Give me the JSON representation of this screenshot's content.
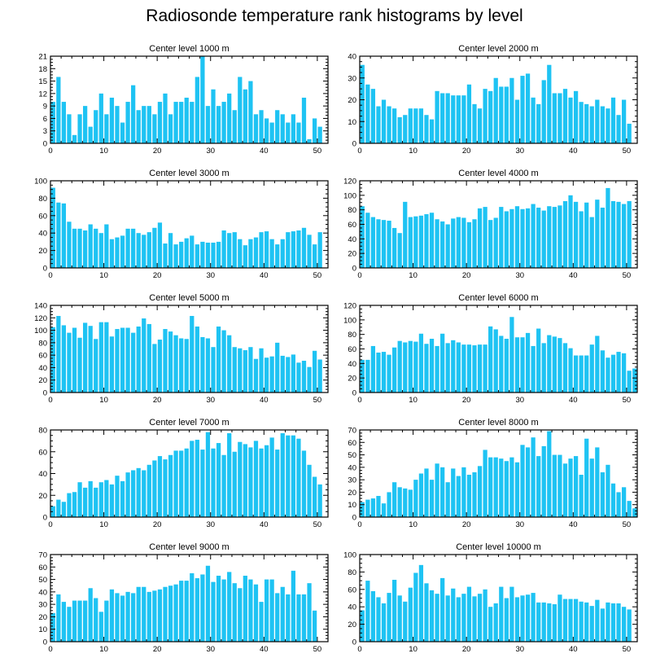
{
  "title": "Radiosonde temperature rank histograms by level",
  "colors": {
    "bar": "#1ec3f3",
    "axis": "#000000",
    "background": "#ffffff"
  },
  "chart_data": [
    {
      "type": "bar",
      "title": "Center level 1000 m",
      "xlim": [
        0,
        52
      ],
      "ylim": [
        0,
        21
      ],
      "xticks": [
        0,
        10,
        20,
        30,
        40,
        50
      ],
      "yticks": [
        0,
        3,
        6,
        9,
        12,
        15,
        18,
        21
      ],
      "values": [
        10,
        16,
        10,
        7,
        2,
        7,
        9,
        4,
        8,
        12,
        7,
        11,
        9,
        5,
        10,
        14,
        8,
        9,
        9,
        7,
        10,
        12,
        7,
        10,
        10,
        11,
        10,
        16,
        21,
        9,
        13,
        9,
        10,
        12,
        8,
        16,
        13,
        15,
        7,
        8,
        6,
        5,
        8,
        7,
        5,
        7,
        5,
        11,
        1,
        6,
        4
      ]
    },
    {
      "type": "bar",
      "title": "Center level 2000 m",
      "xlim": [
        0,
        52
      ],
      "ylim": [
        0,
        40
      ],
      "xticks": [
        0,
        10,
        20,
        30,
        40,
        50
      ],
      "yticks": [
        0,
        10,
        20,
        30,
        40
      ],
      "values": [
        36,
        27,
        25,
        17,
        20,
        17,
        16,
        12,
        13,
        16,
        16,
        16,
        13,
        11,
        24,
        23,
        23,
        22,
        22,
        22,
        27,
        18,
        16,
        25,
        24,
        30,
        26,
        26,
        30,
        20,
        31,
        32,
        21,
        18,
        29,
        36,
        23,
        23,
        25,
        21,
        24,
        19,
        18,
        17,
        20,
        17,
        16,
        21,
        13,
        20,
        9
      ]
    },
    {
      "type": "bar",
      "title": "Center level 3000 m",
      "xlim": [
        0,
        52
      ],
      "ylim": [
        0,
        100
      ],
      "xticks": [
        0,
        10,
        20,
        30,
        40,
        50
      ],
      "yticks": [
        0,
        20,
        40,
        60,
        80,
        100
      ],
      "values": [
        92,
        75,
        74,
        53,
        45,
        45,
        43,
        50,
        45,
        40,
        50,
        33,
        35,
        37,
        45,
        45,
        40,
        38,
        41,
        46,
        52,
        28,
        40,
        27,
        30,
        34,
        37,
        27,
        30,
        29,
        29,
        30,
        43,
        40,
        41,
        33,
        26,
        33,
        35,
        41,
        42,
        33,
        27,
        33,
        41,
        42,
        43,
        46,
        38,
        27,
        41
      ]
    },
    {
      "type": "bar",
      "title": "Center level 4000 m",
      "xlim": [
        0,
        52
      ],
      "ylim": [
        0,
        120
      ],
      "xticks": [
        0,
        10,
        20,
        30,
        40,
        50
      ],
      "yticks": [
        0,
        20,
        40,
        60,
        80,
        100,
        120
      ],
      "values": [
        85,
        76,
        70,
        67,
        66,
        65,
        55,
        48,
        91,
        70,
        71,
        72,
        74,
        76,
        67,
        64,
        60,
        68,
        70,
        69,
        63,
        67,
        82,
        84,
        66,
        69,
        84,
        78,
        81,
        85,
        81,
        82,
        88,
        83,
        79,
        85,
        84,
        86,
        92,
        100,
        91,
        78,
        90,
        70,
        94,
        83,
        110,
        92,
        91,
        88,
        92
      ]
    },
    {
      "type": "bar",
      "title": "Center level 5000 m",
      "xlim": [
        0,
        52
      ],
      "ylim": [
        0,
        140
      ],
      "xticks": [
        0,
        10,
        20,
        30,
        40,
        50
      ],
      "yticks": [
        0,
        20,
        40,
        60,
        80,
        100,
        120,
        140
      ],
      "values": [
        105,
        123,
        108,
        96,
        104,
        88,
        112,
        107,
        86,
        113,
        113,
        90,
        102,
        104,
        104,
        96,
        106,
        119,
        110,
        78,
        85,
        102,
        98,
        92,
        87,
        86,
        123,
        106,
        89,
        87,
        73,
        106,
        100,
        92,
        73,
        71,
        68,
        73,
        54,
        71,
        56,
        58,
        80,
        59,
        57,
        61,
        48,
        51,
        41,
        67,
        53
      ]
    },
    {
      "type": "bar",
      "title": "Center level 6000 m",
      "xlim": [
        0,
        52
      ],
      "ylim": [
        0,
        120
      ],
      "xticks": [
        0,
        10,
        20,
        30,
        40,
        50
      ],
      "yticks": [
        0,
        20,
        40,
        60,
        80,
        100,
        120
      ],
      "values": [
        45,
        45,
        64,
        55,
        56,
        52,
        62,
        71,
        69,
        71,
        70,
        81,
        67,
        74,
        64,
        81,
        68,
        72,
        69,
        66,
        66,
        65,
        66,
        66,
        91,
        87,
        78,
        74,
        104,
        76,
        76,
        82,
        64,
        88,
        68,
        79,
        77,
        75,
        68,
        61,
        51,
        51,
        51,
        66,
        78,
        58,
        48,
        52,
        56,
        54,
        30,
        33
      ]
    },
    {
      "type": "bar",
      "title": "Center level 7000 m",
      "xlim": [
        0,
        52
      ],
      "ylim": [
        0,
        80
      ],
      "xticks": [
        0,
        10,
        20,
        30,
        40,
        50
      ],
      "yticks": [
        0,
        20,
        40,
        60,
        80
      ],
      "values": [
        10,
        16,
        14,
        22,
        23,
        32,
        27,
        33,
        27,
        32,
        34,
        30,
        38,
        33,
        41,
        43,
        45,
        43,
        48,
        52,
        56,
        53,
        57,
        61,
        61,
        63,
        70,
        71,
        62,
        78,
        63,
        68,
        57,
        77,
        60,
        69,
        67,
        64,
        70,
        63,
        66,
        73,
        62,
        77,
        75,
        75,
        72,
        61,
        48,
        37,
        30
      ]
    },
    {
      "type": "bar",
      "title": "Center level 8000 m",
      "xlim": [
        0,
        52
      ],
      "ylim": [
        0,
        70
      ],
      "xticks": [
        0,
        10,
        20,
        30,
        40,
        50
      ],
      "yticks": [
        0,
        10,
        20,
        30,
        40,
        50,
        60,
        70
      ],
      "values": [
        12,
        14,
        15,
        17,
        11,
        20,
        28,
        24,
        23,
        22,
        30,
        35,
        39,
        30,
        43,
        40,
        28,
        39,
        33,
        40,
        34,
        36,
        41,
        54,
        48,
        48,
        47,
        45,
        48,
        44,
        58,
        56,
        64,
        49,
        57,
        69,
        50,
        50,
        43,
        47,
        49,
        34,
        63,
        47,
        56,
        36,
        42,
        27,
        20,
        24,
        13,
        7
      ]
    },
    {
      "type": "bar",
      "title": "Center level 9000 m",
      "xlim": [
        0,
        52
      ],
      "ylim": [
        0,
        70
      ],
      "xticks": [
        0,
        10,
        20,
        30,
        40,
        50
      ],
      "yticks": [
        0,
        10,
        20,
        30,
        40,
        50,
        60,
        70
      ],
      "values": [
        23,
        38,
        32,
        28,
        33,
        33,
        33,
        43,
        35,
        24,
        33,
        42,
        39,
        37,
        40,
        39,
        44,
        44,
        40,
        41,
        42,
        44,
        45,
        46,
        49,
        49,
        55,
        51,
        54,
        61,
        48,
        53,
        50,
        56,
        47,
        43,
        53,
        50,
        46,
        32,
        50,
        50,
        39,
        44,
        38,
        57,
        38,
        38,
        47,
        25
      ]
    },
    {
      "type": "bar",
      "title": "Center level 10000 m",
      "xlim": [
        0,
        52
      ],
      "ylim": [
        0,
        100
      ],
      "xticks": [
        0,
        10,
        20,
        30,
        40,
        50
      ],
      "yticks": [
        0,
        20,
        40,
        60,
        80,
        100
      ],
      "values": [
        36,
        70,
        58,
        51,
        44,
        56,
        71,
        53,
        46,
        62,
        79,
        88,
        67,
        59,
        55,
        73,
        53,
        61,
        51,
        55,
        63,
        52,
        55,
        60,
        40,
        44,
        63,
        50,
        63,
        51,
        53,
        54,
        56,
        45,
        45,
        44,
        43,
        54,
        49,
        49,
        49,
        46,
        45,
        41,
        48,
        38,
        45,
        44,
        44,
        40,
        37
      ]
    }
  ]
}
